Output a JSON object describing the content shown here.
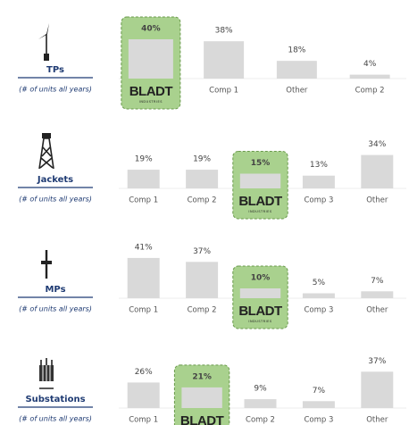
{
  "logo_tagline": "INDUSTRIES",
  "chart_data": [
    {
      "type": "bar",
      "title": "TPs",
      "subtitle": "(# of units all years)",
      "categories": [
        "BLADT",
        "Comp 1",
        "Other",
        "Comp 2"
      ],
      "values": [
        40,
        38,
        18,
        4
      ],
      "value_labels": [
        "40%",
        "38%",
        "18%",
        "4%"
      ],
      "highlight": 0,
      "color": "#d9d9d9",
      "highlight_color": "#a9d18e"
    },
    {
      "type": "bar",
      "title": "Jackets",
      "subtitle": "(# of units all years)",
      "categories": [
        "Comp 1",
        "Comp 2",
        "BLADT",
        "Comp 3",
        "Other"
      ],
      "values": [
        19,
        19,
        15,
        13,
        34
      ],
      "value_labels": [
        "19%",
        "19%",
        "15%",
        "13%",
        "34%"
      ],
      "highlight": 2,
      "color": "#d9d9d9",
      "highlight_color": "#a9d18e"
    },
    {
      "type": "bar",
      "title": "MPs",
      "subtitle": "(# of units all years)",
      "categories": [
        "Comp 1",
        "Comp 2",
        "BLADT",
        "Comp 3",
        "Other"
      ],
      "values": [
        41,
        37,
        10,
        5,
        7
      ],
      "value_labels": [
        "41%",
        "37%",
        "10%",
        "5%",
        "7%"
      ],
      "highlight": 2,
      "color": "#d9d9d9",
      "highlight_color": "#a9d18e"
    },
    {
      "type": "bar",
      "title": "Substations",
      "subtitle": "(# of units all years)",
      "categories": [
        "Comp 1",
        "BLADT",
        "Comp 2",
        "Comp 3",
        "Other"
      ],
      "values": [
        26,
        21,
        9,
        7,
        37
      ],
      "value_labels": [
        "26%",
        "21%",
        "9%",
        "7%",
        "37%"
      ],
      "highlight": 1,
      "color": "#d9d9d9",
      "highlight_color": "#a9d18e"
    }
  ]
}
